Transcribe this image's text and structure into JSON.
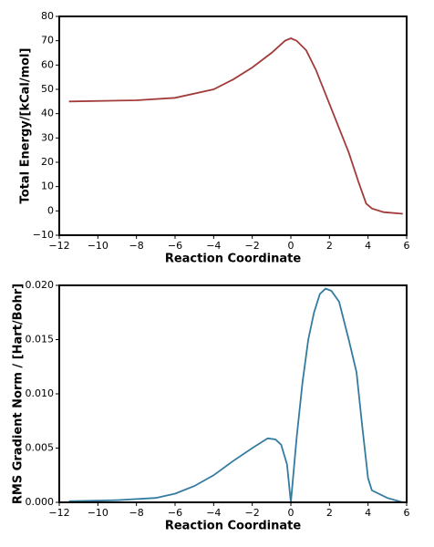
{
  "chart_data": [
    {
      "type": "line",
      "x_label": "Reaction Coordinate",
      "y_label": "Total Energy/[kCal/mol]",
      "color": "#a23c3a",
      "x": [
        -11.5,
        -8,
        -6,
        -4,
        -3,
        -2,
        -1,
        -0.3,
        0,
        0.3,
        0.8,
        1.3,
        1.8,
        2.4,
        3,
        3.5,
        3.9,
        4.2,
        4.8,
        5.8
      ],
      "values": [
        45,
        45.5,
        46.5,
        50,
        54,
        59,
        65,
        70,
        71,
        70,
        66,
        58,
        48,
        36,
        24,
        12,
        3,
        1,
        -0.5,
        -1.2
      ],
      "xlim": [
        -12,
        6
      ],
      "xticks": [
        {
          "value": -12,
          "label": "−12"
        },
        {
          "value": -10,
          "label": "−10"
        },
        {
          "value": -8,
          "label": "−8"
        },
        {
          "value": -6,
          "label": "−6"
        },
        {
          "value": -4,
          "label": "−4"
        },
        {
          "value": -2,
          "label": "−2"
        },
        0,
        2,
        4,
        6
      ],
      "ylim": [
        -10,
        80
      ],
      "yticks": [
        {
          "value": -10,
          "label": "−10"
        },
        0,
        10,
        20,
        30,
        40,
        50,
        60,
        70,
        80
      ]
    },
    {
      "type": "line",
      "x_label": "Reaction Coordinate",
      "y_label": "RMS Gradient Norm / [Hart/Bohr]",
      "color": "#347ba0",
      "x": [
        -11.5,
        -9,
        -7,
        -6,
        -5,
        -4,
        -3,
        -2,
        -1.2,
        -0.8,
        -0.5,
        -0.2,
        0,
        0.3,
        0.6,
        0.9,
        1.2,
        1.5,
        1.8,
        2.1,
        2.5,
        3,
        3.4,
        3.7,
        4,
        4.2,
        5,
        5.8
      ],
      "values": [
        0.0001,
        0.0002,
        0.0004,
        0.0008,
        0.0015,
        0.0025,
        0.0038,
        0.005,
        0.0059,
        0.0058,
        0.0053,
        0.0035,
        0,
        0.006,
        0.011,
        0.015,
        0.0175,
        0.0192,
        0.0197,
        0.0195,
        0.0185,
        0.015,
        0.012,
        0.007,
        0.0022,
        0.0011,
        0.0004,
        0
      ],
      "xlim": [
        -12,
        6
      ],
      "xticks": [
        {
          "value": -12,
          "label": "−12"
        },
        {
          "value": -10,
          "label": "−10"
        },
        {
          "value": -8,
          "label": "−8"
        },
        {
          "value": -6,
          "label": "−6"
        },
        {
          "value": -4,
          "label": "−4"
        },
        {
          "value": -2,
          "label": "−2"
        },
        0,
        2,
        4,
        6
      ],
      "ylim": [
        0,
        0.02
      ],
      "yticks": [
        {
          "value": 0,
          "label": "0.000"
        },
        {
          "value": 0.005,
          "label": "0.005"
        },
        {
          "value": 0.01,
          "label": "0.010"
        },
        {
          "value": 0.015,
          "label": "0.015"
        },
        {
          "value": 0.02,
          "label": "0.020"
        }
      ]
    }
  ]
}
